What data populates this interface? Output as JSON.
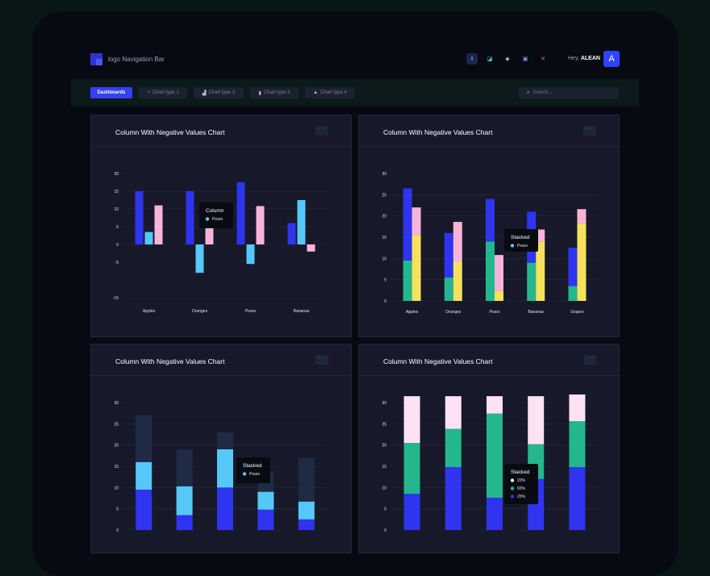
{
  "header": {
    "logo_text": "logo Navigation Bar",
    "greeting": "Hey,",
    "user_name": "ALEAN",
    "avatar_letter": "A",
    "icons": [
      "app-icon-1",
      "app-icon-2",
      "app-icon-3",
      "app-icon-4",
      "app-icon-5"
    ]
  },
  "toolbar": {
    "tabs": [
      {
        "label": "Dashboards"
      },
      {
        "label": "Chart type 1"
      },
      {
        "label": "Chart type 2"
      },
      {
        "label": "Chart type 3"
      },
      {
        "label": "Chart type 4"
      }
    ],
    "search_placeholder": "Search..."
  },
  "menu_label": "···",
  "colors": {
    "blue": "#2f34ef",
    "light_blue": "#56c8f8",
    "pink": "#f7b4d8",
    "green": "#24b68d",
    "yellow": "#f6e15c",
    "navy": "#1f2a44",
    "light_pink": "#fde1f4"
  },
  "chart_data": [
    {
      "type": "bar",
      "title": "Column With Negative Values Chart",
      "categories": [
        "Apples",
        "Oranges",
        "Pears",
        "Bananas"
      ],
      "yticks": [
        20,
        15,
        10,
        5,
        0,
        -5,
        -15
      ],
      "ylim": [
        -15,
        20
      ],
      "series": [
        {
          "values": [
            15,
            15,
            17.5,
            6
          ]
        },
        {
          "values": [
            3.5,
            -8,
            -5.5,
            12.5
          ]
        },
        {
          "values": [
            11,
            4.8,
            10.8,
            -2
          ]
        }
      ],
      "tooltip": {
        "title": "Column",
        "items": [
          "Pears"
        ]
      }
    },
    {
      "type": "bar",
      "stacked": true,
      "title": "Column With Negative Values Chart",
      "categories": [
        "Apples",
        "Oranges",
        "Pears",
        "Bananas",
        "Grapes"
      ],
      "yticks": [
        30,
        25,
        20,
        15,
        10,
        5,
        0
      ],
      "ylim": [
        0,
        30
      ],
      "series": [
        {
          "values": [
            9.5,
            5.5,
            14,
            9,
            3.5
          ]
        },
        {
          "values": [
            17,
            10.5,
            10,
            12,
            9
          ]
        }
      ],
      "overlay": [
        {
          "values": [
            15.5,
            9.3,
            2.4,
            14,
            18.2
          ]
        },
        {
          "values": [
            6.5,
            9.3,
            8.4,
            2.8,
            3.4
          ]
        }
      ],
      "tooltip": {
        "title": "Stacked",
        "items": [
          "Pears"
        ]
      }
    },
    {
      "type": "bar",
      "stacked": true,
      "title": "Column With Negative Values Chart",
      "categories": [
        "",
        "",
        "",
        "",
        ""
      ],
      "yticks": [
        30,
        25,
        20,
        15,
        10,
        5,
        0
      ],
      "ylim": [
        0,
        30
      ],
      "series": [
        {
          "values": [
            9.5,
            3.5,
            10,
            4.8,
            2.5
          ]
        },
        {
          "values": [
            6.5,
            6.8,
            9,
            4.2,
            4.2
          ]
        },
        {
          "values": [
            11,
            8.7,
            4,
            4.8,
            10.3
          ]
        }
      ],
      "tooltip": {
        "title": "Stacked",
        "items": [
          "Pears"
        ]
      }
    },
    {
      "type": "bar",
      "stacked": true,
      "title": "Column With Negative Values Chart",
      "categories": [
        "",
        "",
        "",
        "",
        ""
      ],
      "yticks": [
        30,
        25,
        20,
        15,
        10,
        5,
        0
      ],
      "ylim": [
        0,
        30
      ],
      "series": [
        {
          "values": [
            8.5,
            14.8,
            7.6,
            12,
            14.8
          ]
        },
        {
          "values": [
            12,
            9,
            19.8,
            8.2,
            10.8
          ]
        },
        {
          "values": [
            11,
            7.7,
            4.1,
            11.3,
            6.3
          ]
        }
      ],
      "tooltip": {
        "title": "Stacked",
        "items": [
          "20%",
          "60%",
          "20%"
        ]
      }
    }
  ]
}
